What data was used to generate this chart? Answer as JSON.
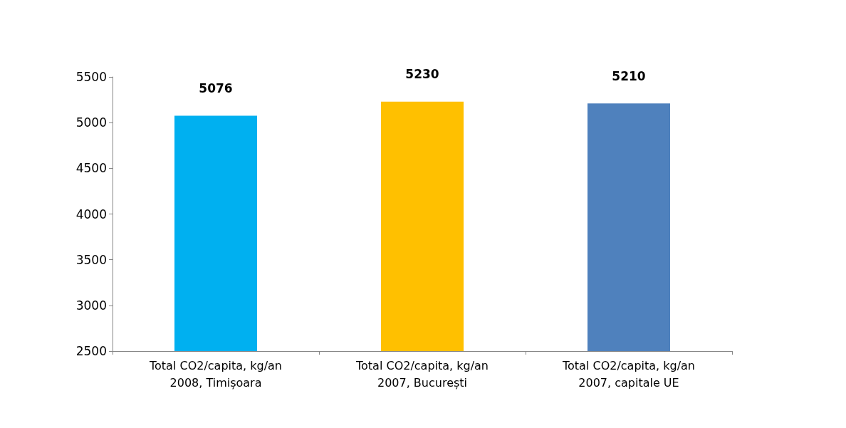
{
  "chart_data": {
    "type": "bar",
    "categories": [
      "Total CO2/capita, kg/an\n2008, Timișoara",
      "Total CO2/capita, kg/an\n2007, București",
      "Total CO2/capita, kg/an\n2007, capitale UE"
    ],
    "values": [
      5076,
      5230,
      5210
    ],
    "colors": [
      "#00b0f0",
      "#ffc000",
      "#4f81bd"
    ],
    "ylim": [
      2500,
      5500
    ],
    "yticks": [
      2500,
      3000,
      3500,
      4000,
      4500,
      5000,
      5500
    ],
    "data_labels": true,
    "grid": false
  }
}
